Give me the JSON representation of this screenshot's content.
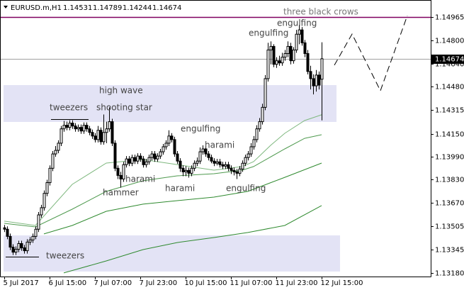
{
  "chart_data": {
    "type": "candlestick",
    "symbol": "EURUSD.m,H1",
    "categories": [
      "5 Jul 2017",
      null,
      null,
      null,
      null,
      null,
      null,
      null,
      null,
      null,
      null,
      null,
      null,
      null,
      null,
      null,
      "6 Jul 15:00",
      null,
      null,
      null,
      null,
      null,
      null,
      null,
      null,
      null,
      null,
      null,
      null,
      null,
      null,
      null,
      "7 Jul 07:00",
      null,
      null,
      null,
      null,
      null,
      null,
      null,
      null,
      null,
      null,
      null,
      null,
      null,
      null,
      null,
      "7 Jul 23:00",
      null,
      null,
      null,
      null,
      null,
      null,
      null,
      null,
      null,
      null,
      null,
      null,
      null,
      null,
      null,
      "10 Jul 15:00",
      null,
      null,
      null,
      null,
      null,
      null,
      null,
      null,
      null,
      null,
      null,
      null,
      null,
      null,
      null,
      "11 Jul 07:00",
      null,
      null,
      null,
      null,
      null,
      null,
      null,
      null,
      null,
      null,
      null,
      null,
      null,
      null,
      null,
      "11 Jul 23:00",
      null,
      null,
      null,
      null,
      null,
      null,
      null,
      null,
      null,
      null,
      null,
      null,
      null,
      null,
      null,
      "12 Jul 15:00"
    ],
    "open": [
      1.13495,
      1.13485,
      1.13435,
      1.1336,
      1.13325,
      1.13345,
      1.13385,
      1.13355,
      1.13335,
      1.13395,
      1.1341,
      1.13435,
      1.13485,
      1.13585,
      1.13635,
      1.13735,
      1.1381,
      1.1391,
      1.1401,
      1.14035,
      1.14085,
      1.14185,
      1.1421,
      1.14195,
      1.14225,
      1.14205,
      1.14185,
      1.14195,
      1.1417,
      1.1421,
      1.14185,
      1.1416,
      1.14135,
      1.1411,
      1.14175,
      1.14095,
      1.1416,
      1.14185,
      1.14235,
      1.14085,
      1.1391,
      1.1386,
      1.13835,
      1.13935,
      1.13975,
      1.13945,
      1.13985,
      1.1396,
      1.13995,
      1.13975,
      1.13935,
      1.13955,
      1.13985,
      1.1401,
      1.13975,
      1.13995,
      1.14025,
      1.1406,
      1.14085,
      1.14135,
      1.1411,
      1.1401,
      1.1396,
      1.1391,
      1.13885,
      1.13895,
      1.13875,
      1.1391,
      1.13945,
      1.1396,
      1.14025,
      1.14045,
      1.1401,
      1.13985,
      1.1396,
      1.13945,
      1.13955,
      1.13935,
      1.13925,
      1.13935,
      1.1391,
      1.13895,
      1.13885,
      1.13875,
      1.13905,
      1.13945,
      1.13985,
      1.1401,
      1.1406,
      1.1411,
      1.14185,
      1.14235,
      1.14335,
      1.14535,
      1.14735,
      1.1476,
      1.14635,
      1.1466,
      1.14645,
      1.14685,
      1.1471,
      1.1476,
      1.1466,
      1.14735,
      1.14845,
      1.14875,
      1.14785,
      1.1471,
      1.14585,
      1.14535,
      1.14485,
      1.1456,
      1.14531
    ],
    "high": [
      1.13515,
      1.13505,
      1.13455,
      1.1338,
      1.13365,
      1.13405,
      1.13405,
      1.13375,
      1.13415,
      1.1343,
      1.13455,
      1.13505,
      1.13605,
      1.13655,
      1.13755,
      1.1383,
      1.1393,
      1.1403,
      1.14065,
      1.14105,
      1.14205,
      1.1424,
      1.14235,
      1.14245,
      1.14245,
      1.14225,
      1.14215,
      1.14215,
      1.1423,
      1.1423,
      1.14205,
      1.1418,
      1.14155,
      1.14205,
      1.14195,
      1.14285,
      1.14235,
      1.14335,
      1.14255,
      1.14105,
      1.1393,
      1.13885,
      1.13955,
      1.13995,
      1.13995,
      1.14005,
      1.14005,
      1.14015,
      1.14015,
      1.13995,
      1.13975,
      1.14005,
      1.1403,
      1.1403,
      1.14015,
      1.14045,
      1.1408,
      1.14105,
      1.14175,
      1.14155,
      1.1413,
      1.1403,
      1.1398,
      1.1393,
      1.13925,
      1.13915,
      1.1393,
      1.13965,
      1.13985,
      1.14055,
      1.1407,
      1.14065,
      1.1403,
      1.14005,
      1.1398,
      1.13975,
      1.13975,
      1.13955,
      1.13955,
      1.13955,
      1.1393,
      1.13915,
      1.13905,
      1.13925,
      1.13965,
      1.14005,
      1.1403,
      1.14085,
      1.14135,
      1.1421,
      1.1426,
      1.1436,
      1.1456,
      1.14785,
      1.14795,
      1.14775,
      1.14685,
      1.14695,
      1.14715,
      1.14735,
      1.14795,
      1.14785,
      1.14755,
      1.14875,
      1.1491,
      1.14895,
      1.14805,
      1.14735,
      1.14625,
      1.14565,
      1.14595,
      1.14585,
      1.14789
    ],
    "low": [
      1.13465,
      1.13415,
      1.1334,
      1.13305,
      1.13305,
      1.13325,
      1.13335,
      1.13315,
      1.13315,
      1.13375,
      1.1339,
      1.13415,
      1.13465,
      1.13565,
      1.13615,
      1.13715,
      1.1379,
      1.1389,
      1.1399,
      1.14015,
      1.14065,
      1.14165,
      1.14175,
      1.14175,
      1.14185,
      1.14165,
      1.14165,
      1.1415,
      1.1415,
      1.14165,
      1.1414,
      1.14115,
      1.1409,
      1.1409,
      1.14075,
      1.14075,
      1.14085,
      1.14165,
      1.14065,
      1.1389,
      1.13835,
      1.13775,
      1.13815,
      1.13915,
      1.13925,
      1.13925,
      1.1394,
      1.1394,
      1.13955,
      1.13915,
      1.13915,
      1.13935,
      1.13965,
      1.13955,
      1.13955,
      1.13975,
      1.14005,
      1.1404,
      1.14065,
      1.1409,
      1.1399,
      1.1394,
      1.13885,
      1.13855,
      1.13855,
      1.13845,
      1.13855,
      1.1389,
      1.13925,
      1.1394,
      1.14005,
      1.1399,
      1.13965,
      1.13945,
      1.13925,
      1.1393,
      1.13915,
      1.13905,
      1.13905,
      1.1389,
      1.1387,
      1.1386,
      1.13835,
      1.13855,
      1.13885,
      1.13925,
      1.13965,
      1.1399,
      1.1404,
      1.1409,
      1.14165,
      1.14215,
      1.14315,
      1.14515,
      1.14635,
      1.14615,
      1.1461,
      1.14625,
      1.14625,
      1.1466,
      1.14685,
      1.14635,
      1.1464,
      1.14715,
      1.14775,
      1.14765,
      1.14685,
      1.14565,
      1.1446,
      1.14425,
      1.14445,
      1.1446,
      1.14244
    ],
    "close": [
      1.13485,
      1.13435,
      1.1336,
      1.13325,
      1.13345,
      1.13385,
      1.13355,
      1.13335,
      1.13395,
      1.1341,
      1.13435,
      1.13485,
      1.13585,
      1.13635,
      1.13735,
      1.1381,
      1.1391,
      1.1401,
      1.14035,
      1.14085,
      1.14185,
      1.1421,
      1.14195,
      1.14225,
      1.14205,
      1.14185,
      1.14195,
      1.1417,
      1.1421,
      1.14185,
      1.1416,
      1.14135,
      1.1411,
      1.14175,
      1.14095,
      1.1416,
      1.14185,
      1.14235,
      1.14085,
      1.1391,
      1.1386,
      1.13835,
      1.13935,
      1.13975,
      1.13945,
      1.13985,
      1.1396,
      1.13995,
      1.13975,
      1.13935,
      1.13955,
      1.13985,
      1.1401,
      1.13975,
      1.13995,
      1.14025,
      1.1406,
      1.14085,
      1.14135,
      1.1411,
      1.1401,
      1.1396,
      1.1391,
      1.13885,
      1.13895,
      1.13875,
      1.1391,
      1.13945,
      1.1396,
      1.14025,
      1.14045,
      1.1401,
      1.13985,
      1.1396,
      1.13945,
      1.13955,
      1.13935,
      1.13925,
      1.13935,
      1.1391,
      1.13895,
      1.13885,
      1.13875,
      1.13905,
      1.13945,
      1.13985,
      1.1401,
      1.1406,
      1.1411,
      1.14185,
      1.14235,
      1.14335,
      1.14535,
      1.14735,
      1.1476,
      1.14635,
      1.1466,
      1.14645,
      1.14685,
      1.1471,
      1.1476,
      1.1466,
      1.14735,
      1.14845,
      1.14875,
      1.14785,
      1.1471,
      1.14585,
      1.14535,
      1.14485,
      1.1456,
      1.1449,
      1.14674
    ],
    "up_color": "#ffffff",
    "down_color": "#000000",
    "ylim": [
      1.13155,
      1.15044
    ],
    "yticks": [
      1.14965,
      {
        "value": 1.148,
        "label": "1.14800"
      },
      {
        "value": 1.1464,
        "label": "1.14640"
      },
      {
        "value": 1.1448,
        "label": "1.14480"
      },
      1.14315,
      {
        "value": 1.1415,
        "label": "1.14150"
      },
      {
        "value": 1.1399,
        "label": "1.13990"
      },
      {
        "value": 1.1383,
        "label": "1.13830"
      },
      {
        "value": 1.1367,
        "label": "1.13670"
      },
      1.13505,
      1.13345,
      {
        "value": 1.1318,
        "label": "1.13180"
      }
    ],
    "moving_averages": [
      {
        "color": "#7fb87f",
        "x": [
          0,
          11,
          24,
          36,
          49,
          61,
          74,
          84,
          88,
          94,
          99,
          106,
          112
        ],
        "values": [
          1.13541,
          1.13511,
          1.13798,
          1.13946,
          1.13971,
          1.13936,
          1.13897,
          1.13922,
          1.13956,
          1.1407,
          1.14154,
          1.14243,
          1.14283
        ]
      },
      {
        "color": "#4f9a4f",
        "x": [
          0,
          11,
          24,
          36,
          49,
          61,
          74,
          84,
          88,
          99,
          106,
          112
        ],
        "values": [
          1.13526,
          1.13501,
          1.13625,
          1.13749,
          1.13823,
          1.13857,
          1.13872,
          1.13897,
          1.13922,
          1.14045,
          1.14119,
          1.14144
        ]
      },
      {
        "color": "#2f8a2f",
        "x": [
          14,
          24,
          36,
          49,
          61,
          74,
          86,
          99,
          112
        ],
        "values": [
          1.13452,
          1.13511,
          1.1361,
          1.1366,
          1.13684,
          1.13709,
          1.13749,
          1.13847,
          1.13946
        ]
      },
      {
        "color": "#2f8a2f",
        "x": [
          21,
          36,
          49,
          61,
          74,
          86,
          99,
          112
        ],
        "values": [
          1.1318,
          1.13264,
          1.13343,
          1.13392,
          1.13427,
          1.13462,
          1.13511,
          1.1365
        ]
      }
    ],
    "levels": [
      {
        "value": 1.14965,
        "color": "#800060"
      }
    ],
    "zones": [
      {
        "color": "#e3e3f5",
        "xlim": [
          -0.25,
          117.25
        ],
        "ylim": [
          1.14233,
          1.1449
        ]
      },
      {
        "color": "#e3e3f5",
        "xlim": [
          -0.25,
          118.5
        ],
        "ylim": [
          1.1319,
          1.13442
        ]
      }
    ],
    "projection": {
      "color": "#000000",
      "x": [
        116.5,
        122.75,
        132.75,
        142.25
      ],
      "values": [
        1.14629,
        1.14846,
        1.14451,
        1.14975
      ]
    },
    "annotations": [
      "three black crows",
      "engulfing",
      "engulfing",
      "high wave",
      "tweezers",
      "shooting star",
      "engulfing",
      "harami",
      "harami",
      "hammer",
      "harami",
      "engulfing",
      "tweezers"
    ]
  }
}
